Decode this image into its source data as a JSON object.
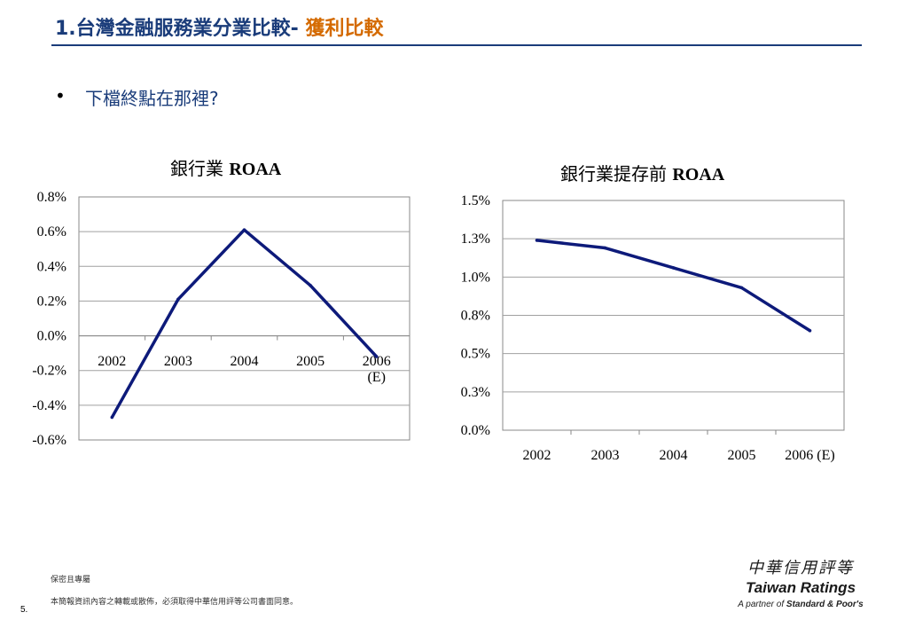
{
  "header": {
    "title_main": "1.台灣金融服務業分業比較-",
    "title_accent": "獲利比較",
    "colors": {
      "title": "#1a3c7a",
      "accent": "#d46a00"
    }
  },
  "bullet": {
    "text": "下檔終點在那裡?"
  },
  "chart_data": [
    {
      "type": "line",
      "title_prefix": "銀行業",
      "title_suffix": "ROAA",
      "categories": [
        "2002",
        "2003",
        "2004",
        "2005",
        "2006 (E)"
      ],
      "category_labels": [
        [
          "2002"
        ],
        [
          "2003"
        ],
        [
          "2004"
        ],
        [
          "2005"
        ],
        [
          "2006",
          "(E)"
        ]
      ],
      "series": [
        {
          "values": [
            -0.47,
            0.21,
            0.61,
            0.29,
            -0.12
          ]
        }
      ],
      "yticks": [
        "0.8%",
        "0.6%",
        "0.4%",
        "0.2%",
        "0.0%",
        "-0.2%",
        "-0.4%",
        "-0.6%"
      ],
      "ylim": [
        -0.6,
        0.8
      ],
      "grid": true,
      "line_color": "#0d1a7a"
    },
    {
      "type": "line",
      "title_prefix": "銀行業提存前",
      "title_suffix": "ROAA",
      "categories": [
        "2002",
        "2003",
        "2004",
        "2005",
        "2006 (E)"
      ],
      "category_labels": [
        [
          "2002"
        ],
        [
          "2003"
        ],
        [
          "2004"
        ],
        [
          "2005"
        ],
        [
          "2006 (E)"
        ]
      ],
      "series": [
        {
          "values": [
            1.24,
            1.19,
            1.06,
            0.93,
            0.65
          ]
        }
      ],
      "yticks": [
        "1.5%",
        "1.3%",
        "1.0%",
        "0.8%",
        "0.5%",
        "0.3%",
        "0.0%"
      ],
      "ylim": [
        0,
        1.5
      ],
      "grid": true,
      "line_color": "#0d1a7a"
    }
  ],
  "footer": {
    "confidential": "保密且專屬",
    "notice": "本簡報資訊內容之轉載或散佈，必須取得中華信用評等公司書面同意。",
    "page": "5."
  },
  "logo": {
    "chinese": "中華信用評等",
    "name": "Taiwan Ratings",
    "partner_prefix": "A partner of",
    "partner_name": "Standard & Poor's"
  }
}
